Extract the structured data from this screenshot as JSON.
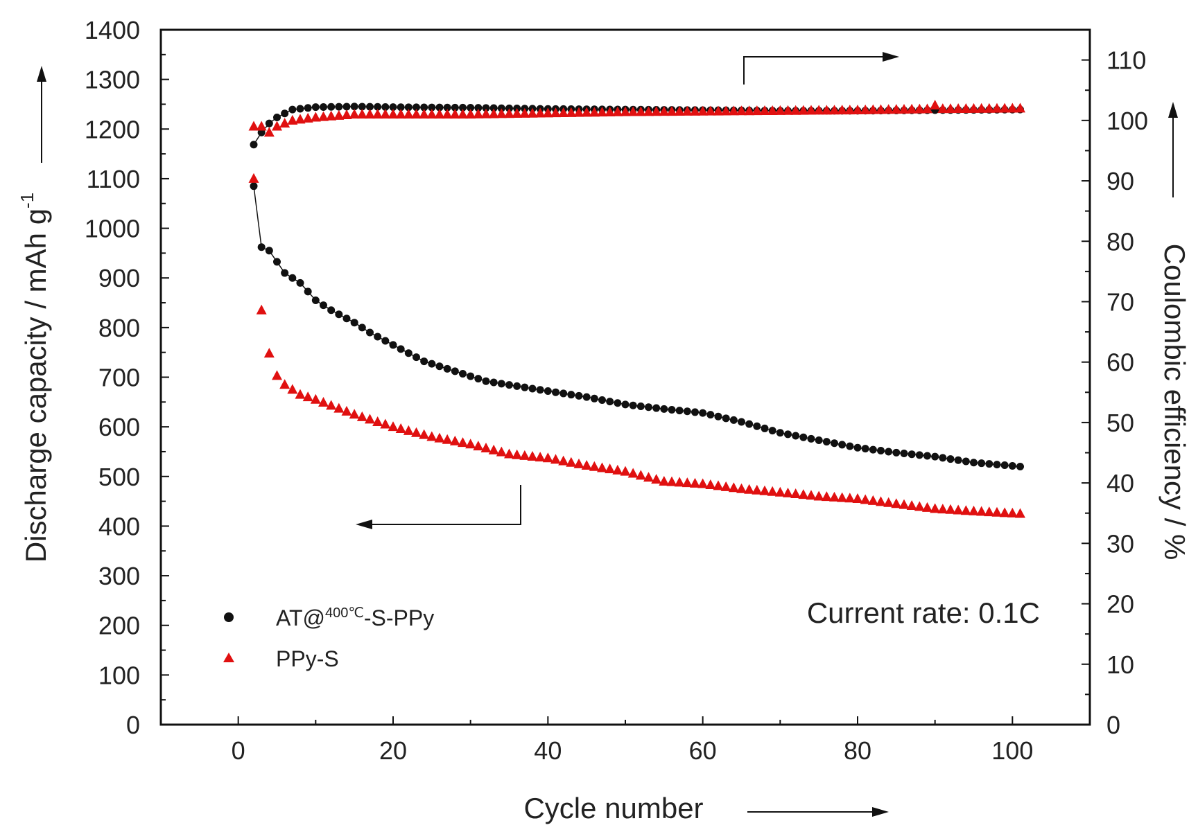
{
  "chart_data": {
    "type": "scatter",
    "title": "",
    "xlabel": "Cycle number",
    "ylabel": "Discharge capacity / mAh g",
    "ylabel_superscript": "-1",
    "y2label": "Coulombic efficiency / %",
    "xlim": [
      -10,
      110
    ],
    "ylim": [
      0,
      1400
    ],
    "y2lim": [
      0,
      115
    ],
    "x_ticks": [
      0,
      20,
      40,
      60,
      80,
      100
    ],
    "x_tick_labels": [
      "0",
      "20",
      "40",
      "60",
      "80",
      "100"
    ],
    "y_ticks": [
      0,
      100,
      200,
      300,
      400,
      500,
      600,
      700,
      800,
      900,
      1000,
      1100,
      1200,
      1300,
      1400
    ],
    "y_tick_labels": [
      "0",
      "100",
      "200",
      "300",
      "400",
      "500",
      "600",
      "700",
      "800",
      "900",
      "1000",
      "1100",
      "1200",
      "1300",
      "1400"
    ],
    "y2_ticks": [
      0,
      10,
      20,
      30,
      40,
      50,
      60,
      70,
      80,
      90,
      100,
      110
    ],
    "y2_tick_labels": [
      "0",
      "10",
      "20",
      "30",
      "40",
      "50",
      "60",
      "70",
      "80",
      "90",
      "100",
      "110"
    ],
    "annotation": "Current rate: 0.1C",
    "legend": {
      "position": "bottom-left",
      "entries": [
        {
          "label_main": "AT@",
          "label_sup": "400℃",
          "label_end": "-S-PPy",
          "marker": "circle",
          "color": "#111111"
        },
        {
          "label_main": "PPy-S",
          "marker": "triangle",
          "color": "#e01010"
        }
      ]
    },
    "capacity_anchors": {
      "AT@400℃-S-PPy": [
        [
          2,
          1085
        ],
        [
          3,
          962
        ],
        [
          4,
          955
        ],
        [
          6,
          910
        ],
        [
          8,
          890
        ],
        [
          10,
          855
        ],
        [
          12,
          835
        ],
        [
          15,
          810
        ],
        [
          17,
          790
        ],
        [
          20,
          765
        ],
        [
          24,
          732
        ],
        [
          28,
          712
        ],
        [
          32,
          692
        ],
        [
          38,
          677
        ],
        [
          45,
          660
        ],
        [
          50,
          645
        ],
        [
          55,
          636
        ],
        [
          60,
          628
        ],
        [
          65,
          610
        ],
        [
          70,
          588
        ],
        [
          75,
          573
        ],
        [
          80,
          558
        ],
        [
          85,
          548
        ],
        [
          90,
          540
        ],
        [
          95,
          528
        ],
        [
          101,
          520
        ]
      ],
      "PPy-S": [
        [
          2,
          1100
        ],
        [
          3,
          835
        ],
        [
          4,
          748
        ],
        [
          5,
          703
        ],
        [
          6,
          685
        ],
        [
          8,
          665
        ],
        [
          10,
          655
        ],
        [
          15,
          625
        ],
        [
          20,
          600
        ],
        [
          25,
          580
        ],
        [
          30,
          565
        ],
        [
          35,
          545
        ],
        [
          40,
          537
        ],
        [
          45,
          522
        ],
        [
          50,
          510
        ],
        [
          55,
          490
        ],
        [
          60,
          485
        ],
        [
          65,
          475
        ],
        [
          70,
          468
        ],
        [
          75,
          460
        ],
        [
          80,
          455
        ],
        [
          85,
          445
        ],
        [
          90,
          435
        ],
        [
          95,
          430
        ],
        [
          101,
          425
        ]
      ]
    },
    "efficiency_anchors": {
      "AT@400℃-S-PPy": [
        [
          2,
          96
        ],
        [
          3,
          98
        ],
        [
          4,
          99.5
        ],
        [
          5,
          100.5
        ],
        [
          7,
          101.8
        ],
        [
          10,
          102.2
        ],
        [
          15,
          102.3
        ],
        [
          20,
          102.2
        ],
        [
          30,
          102.1
        ],
        [
          40,
          101.9
        ],
        [
          50,
          101.8
        ],
        [
          60,
          101.7
        ],
        [
          70,
          101.6
        ],
        [
          80,
          101.6
        ],
        [
          90,
          101.7
        ],
        [
          101,
          101.8
        ]
      ],
      "PPy-S": [
        [
          2,
          99
        ],
        [
          3,
          97
        ],
        [
          4,
          98
        ],
        [
          5,
          99
        ],
        [
          7,
          100
        ],
        [
          10,
          100.5
        ],
        [
          15,
          101
        ],
        [
          20,
          101
        ],
        [
          30,
          101
        ],
        [
          40,
          101.2
        ],
        [
          50,
          101.4
        ],
        [
          60,
          101.5
        ],
        [
          70,
          101.6
        ],
        [
          80,
          101.7
        ],
        [
          90,
          101.9
        ],
        [
          101,
          102
        ]
      ]
    },
    "series": [
      {
        "name": "AT@400℃-S-PPy capacity",
        "axis": "left",
        "marker": "circle",
        "color": "#111111",
        "line": true,
        "x_start": 2,
        "x_end": 101
      },
      {
        "name": "PPy-S capacity",
        "axis": "left",
        "marker": "triangle",
        "color": "#e01010",
        "line": false,
        "x_start": 2,
        "x_end": 101
      },
      {
        "name": "AT@400℃-S-PPy efficiency",
        "axis": "right",
        "marker": "circle",
        "color": "#111111",
        "line": true,
        "x_start": 2,
        "x_end": 101
      },
      {
        "name": "PPy-S efficiency",
        "axis": "right",
        "marker": "triangle",
        "color": "#e01010",
        "line": false,
        "x_start": 2,
        "x_end": 101
      }
    ],
    "outliers": {
      "PPy-S efficiency": [
        [
          3,
          99
        ],
        [
          90,
          102.5
        ]
      ],
      "PPy-S capacity": [
        [
          2,
          1100
        ]
      ]
    }
  }
}
